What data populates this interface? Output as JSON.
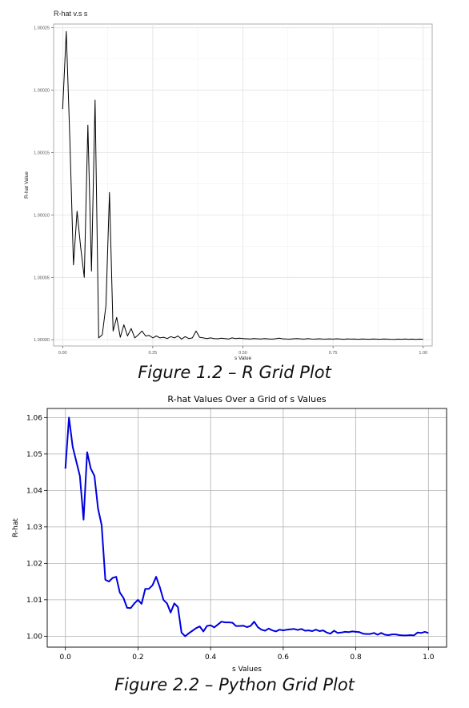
{
  "captions": {
    "r_plot": "Figure 1.2  – R Grid Plot",
    "python_plot": "Figure 2.2  – Python Grid Plot"
  },
  "chart_data": [
    {
      "type": "line",
      "title": "R-hat v.s s",
      "xlabel": "s Value",
      "ylabel": "R-hat Value",
      "xlim": [
        -0.025,
        1.025
      ],
      "ylim": [
        0.999995,
        1.000253
      ],
      "xticks": [
        0.0,
        0.25,
        0.5,
        0.75,
        1.0
      ],
      "xtick_labels": [
        "0.00",
        "0.25",
        "0.50",
        "0.75",
        "1.00"
      ],
      "yticks": [
        1.0,
        1.00005,
        1.0001,
        1.00015,
        1.0002,
        1.00025
      ],
      "ytick_labels": [
        "1.00000",
        "1.00005",
        "1.00010",
        "1.00015",
        "1.00020",
        "1.00025"
      ],
      "grid": true,
      "line_color": "#000000",
      "x": [
        0.0,
        0.01,
        0.02,
        0.03,
        0.04,
        0.05,
        0.06,
        0.07,
        0.08,
        0.09,
        0.1,
        0.11,
        0.12,
        0.13,
        0.14,
        0.15,
        0.16,
        0.17,
        0.18,
        0.19,
        0.2,
        0.21,
        0.22,
        0.23,
        0.24,
        0.25,
        0.26,
        0.27,
        0.28,
        0.29,
        0.3,
        0.31,
        0.32,
        0.33,
        0.34,
        0.35,
        0.36,
        0.37,
        0.38,
        0.39,
        0.4,
        0.41,
        0.42,
        0.43,
        0.44,
        0.45,
        0.46,
        0.47,
        0.48,
        0.49,
        0.5,
        0.51,
        0.52,
        0.53,
        0.54,
        0.55,
        0.56,
        0.57,
        0.58,
        0.59,
        0.6,
        0.61,
        0.62,
        0.63,
        0.64,
        0.65,
        0.66,
        0.67,
        0.68,
        0.69,
        0.7,
        0.71,
        0.72,
        0.73,
        0.74,
        0.75,
        0.76,
        0.77,
        0.78,
        0.79,
        0.8,
        0.81,
        0.82,
        0.83,
        0.84,
        0.85,
        0.86,
        0.87,
        0.88,
        0.89,
        0.9,
        0.91,
        0.92,
        0.93,
        0.94,
        0.95,
        0.96,
        0.97,
        0.98,
        0.99,
        1.0
      ],
      "y": [
        1.000185,
        1.000247,
        1.00016,
        1.00006,
        1.000103,
        1.000074,
        1.00005,
        1.000172,
        1.000055,
        1.000192,
        1.0000015,
        1.000004,
        1.000027,
        1.000118,
        1.000007,
        1.000018,
        1.000002,
        1.000012,
        1.000003,
        1.000009,
        1.0000015,
        1.000004,
        1.000007,
        1.000003,
        1.0000035,
        1.0000015,
        1.000003,
        1.0000015,
        1.000002,
        1.000001,
        1.0000025,
        1.0000015,
        1.000003,
        1.0000005,
        1.0000025,
        1.000001,
        1.0000015,
        1.000007,
        1.000002,
        1.0000015,
        1.000001,
        1.0000015,
        1.000001,
        1.0000008,
        1.0000012,
        1.000001,
        1.0000006,
        1.0000015,
        1.000001,
        1.0000012,
        1.000001,
        1.0000008,
        1.0000006,
        1.000001,
        1.0000008,
        1.0000006,
        1.000001,
        1.0000007,
        1.0000005,
        1.0000008,
        1.0000012,
        1.0000008,
        1.0000006,
        1.0000005,
        1.0000008,
        1.000001,
        1.0000007,
        1.0000005,
        1.0000009,
        1.0000006,
        1.0000005,
        1.0000008,
        1.0000006,
        1.0000005,
        1.0000007,
        1.0000005,
        1.0000008,
        1.0000006,
        1.0000004,
        1.0000007,
        1.0000005,
        1.0000006,
        1.0000004,
        1.0000006,
        1.0000005,
        1.0000004,
        1.0000006,
        1.0000005,
        1.0000004,
        1.0000006,
        1.0000005,
        1.0000004,
        1.0000003,
        1.0000005,
        1.0000004,
        1.0000006,
        1.0000004,
        1.0000005,
        1.0000003,
        1.0000005,
        1.0000004
      ]
    },
    {
      "type": "line",
      "title": "R-hat Values Over a Grid of s Values",
      "xlabel": "s Values",
      "ylabel": "R-hat",
      "xlim": [
        -0.05,
        1.05
      ],
      "ylim": [
        0.997,
        1.0625
      ],
      "xticks": [
        0.0,
        0.2,
        0.4,
        0.6,
        0.8,
        1.0
      ],
      "xtick_labels": [
        "0.0",
        "0.2",
        "0.4",
        "0.6",
        "0.8",
        "1.0"
      ],
      "yticks": [
        1.0,
        1.01,
        1.02,
        1.03,
        1.04,
        1.05,
        1.06
      ],
      "ytick_labels": [
        "1.00",
        "1.01",
        "1.02",
        "1.03",
        "1.04",
        "1.05",
        "1.06"
      ],
      "grid": true,
      "line_color": "#0000dd",
      "x": [
        0.0,
        0.01,
        0.02,
        0.03,
        0.04,
        0.05,
        0.06,
        0.07,
        0.08,
        0.09,
        0.1,
        0.11,
        0.12,
        0.13,
        0.14,
        0.15,
        0.16,
        0.17,
        0.18,
        0.19,
        0.2,
        0.21,
        0.22,
        0.23,
        0.24,
        0.25,
        0.26,
        0.27,
        0.28,
        0.29,
        0.3,
        0.31,
        0.32,
        0.33,
        0.34,
        0.35,
        0.36,
        0.37,
        0.38,
        0.39,
        0.4,
        0.41,
        0.42,
        0.43,
        0.44,
        0.45,
        0.46,
        0.47,
        0.48,
        0.49,
        0.5,
        0.51,
        0.52,
        0.53,
        0.54,
        0.55,
        0.56,
        0.57,
        0.58,
        0.59,
        0.6,
        0.61,
        0.62,
        0.63,
        0.64,
        0.65,
        0.66,
        0.67,
        0.68,
        0.69,
        0.7,
        0.71,
        0.72,
        0.73,
        0.74,
        0.75,
        0.76,
        0.77,
        0.78,
        0.79,
        0.8,
        0.81,
        0.82,
        0.83,
        0.84,
        0.85,
        0.86,
        0.87,
        0.88,
        0.89,
        0.9,
        0.91,
        0.92,
        0.93,
        0.94,
        0.95,
        0.96,
        0.97,
        0.98,
        0.99,
        1.0
      ],
      "y": [
        1.046,
        1.06,
        1.052,
        1.048,
        1.044,
        1.032,
        1.0505,
        1.046,
        1.044,
        1.035,
        1.0305,
        1.0155,
        1.015,
        1.016,
        1.0163,
        1.012,
        1.0105,
        1.0078,
        1.0077,
        1.009,
        1.01,
        1.0089,
        1.013,
        1.013,
        1.014,
        1.0163,
        1.0135,
        1.01,
        1.009,
        1.0065,
        1.009,
        1.008,
        1.001,
        1.0,
        1.0008,
        1.0015,
        1.0022,
        1.0027,
        1.0013,
        1.0028,
        1.003,
        1.0024,
        1.0032,
        1.004,
        1.0038,
        1.0038,
        1.0037,
        1.0028,
        1.0028,
        1.0029,
        1.0025,
        1.0028,
        1.004,
        1.0025,
        1.0018,
        1.0015,
        1.0021,
        1.0016,
        1.0013,
        1.0018,
        1.0016,
        1.0018,
        1.0019,
        1.002,
        1.0017,
        1.002,
        1.0015,
        1.0016,
        1.0014,
        1.0018,
        1.0014,
        1.0016,
        1.001,
        1.0007,
        1.0015,
        1.0009,
        1.001,
        1.0012,
        1.0011,
        1.0013,
        1.0012,
        1.0011,
        1.0007,
        1.0006,
        1.0006,
        1.0009,
        1.0004,
        1.0009,
        1.0004,
        1.0003,
        1.0005,
        1.0005,
        1.0003,
        1.0002,
        1.0002,
        1.0003,
        1.0002,
        1.001,
        1.0009,
        1.0012,
        1.0009
      ]
    }
  ]
}
